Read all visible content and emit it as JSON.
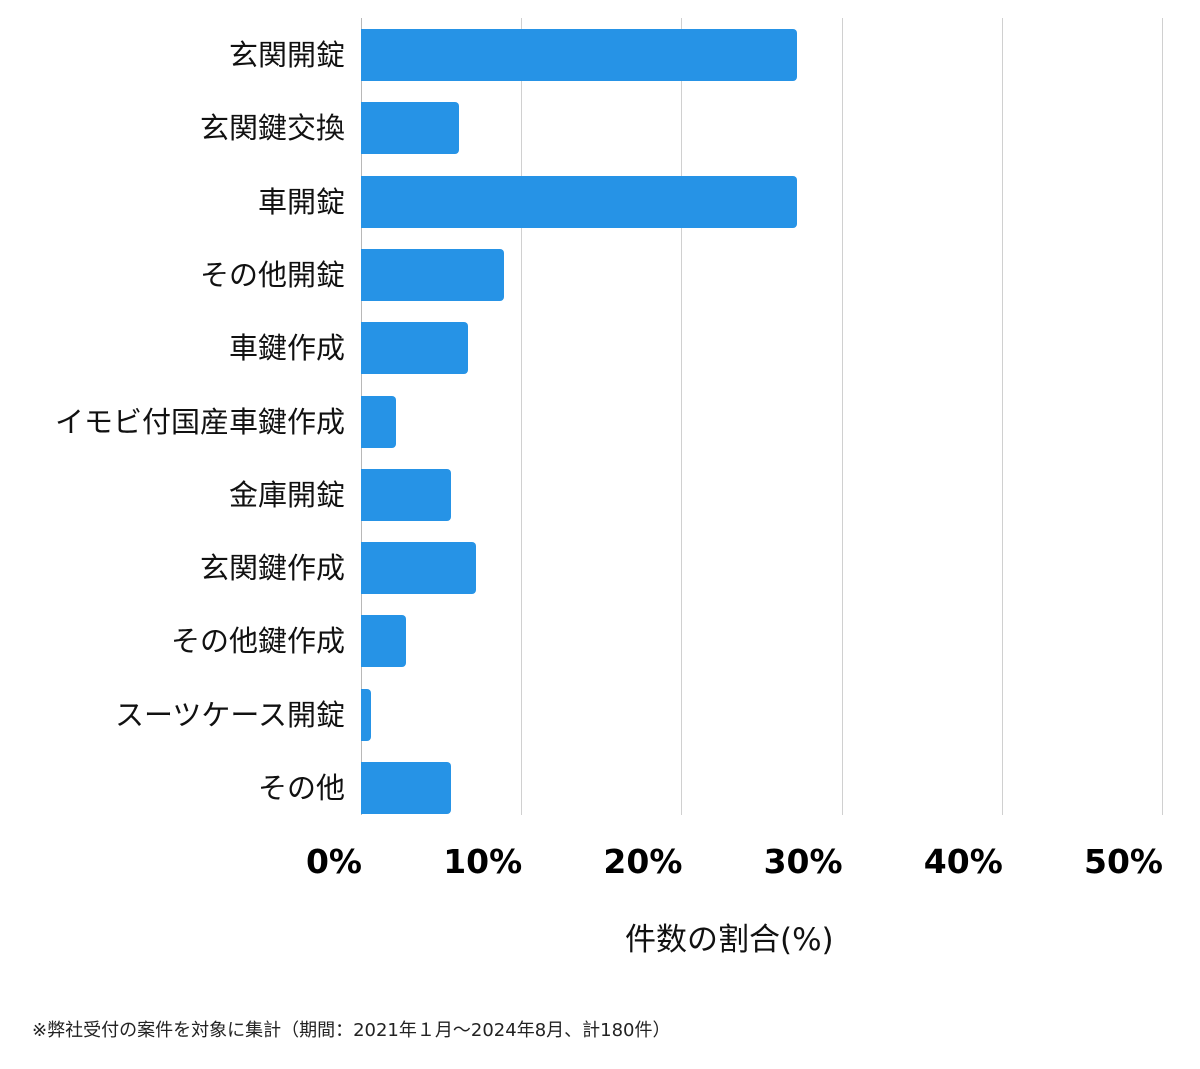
{
  "chart_data": {
    "type": "bar",
    "orientation": "horizontal",
    "title": "",
    "xlabel": "件数の割合(%)",
    "ylabel": "",
    "xlim": [
      0,
      50
    ],
    "grid": true,
    "legend": null,
    "bar_color": "#2693e6",
    "categories": [
      "玄関開錠",
      "玄関鍵交換",
      "車開錠",
      "その他開錠",
      "車鍵作成",
      "イモビ付国産車鍵作成",
      "金庫開錠",
      "玄関鍵作成",
      "その他鍵作成",
      "スーツケース開錠",
      "その他"
    ],
    "values": [
      27.2,
      6.1,
      27.2,
      8.9,
      6.7,
      2.2,
      5.6,
      7.2,
      2.8,
      0.6,
      5.6
    ],
    "x_ticks": [
      "0%",
      "10%",
      "20%",
      "30%",
      "40%",
      "50%"
    ],
    "x_tick_values": [
      0,
      10,
      20,
      30,
      40,
      50
    ],
    "footnote": "※弊社受付の案件を対象に集計（期間：2021年１月〜2024年8月、計180件）"
  },
  "axis": {
    "ticks": [
      "0%",
      "10%",
      "20%",
      "30%",
      "40%",
      "50%"
    ],
    "xlabel": "件数の割合(%)"
  },
  "footnote": "※弊社受付の案件を対象に集計（期間：2021年１月〜2024年8月、計180件）"
}
